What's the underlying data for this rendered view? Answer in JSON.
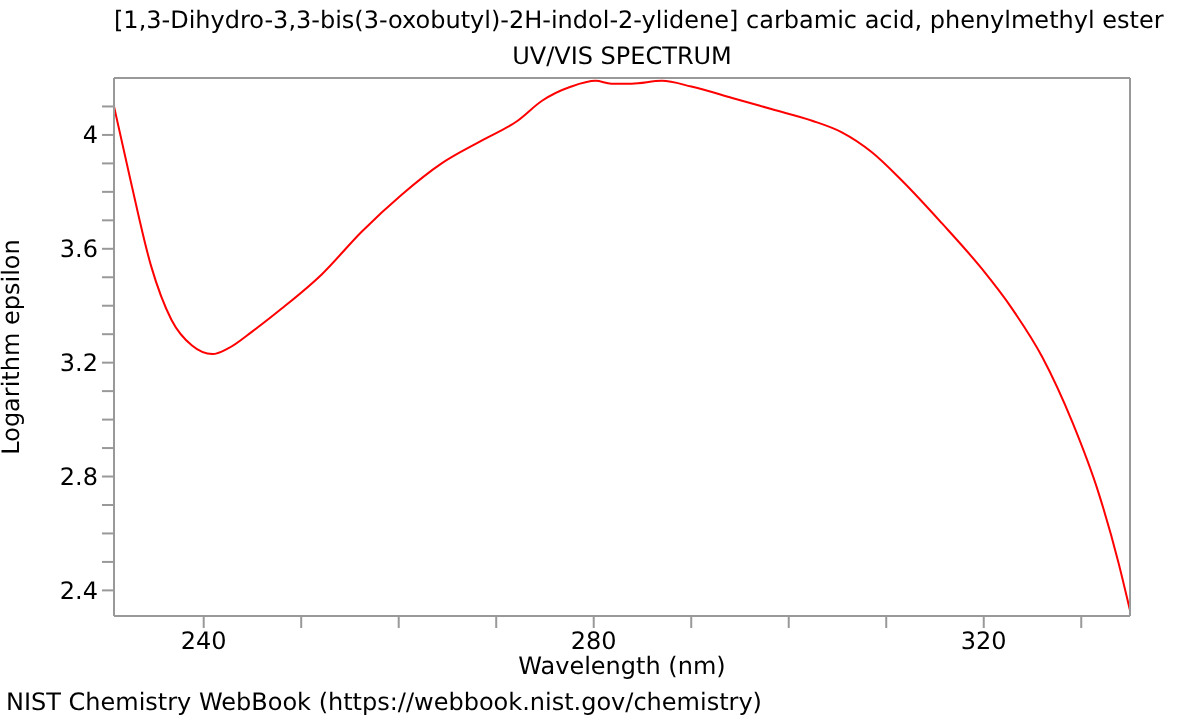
{
  "chart_data": {
    "type": "line",
    "title": "[1,3-Dihydro-3,3-bis(3-oxobutyl)-2H-indol-2-ylidene] carbamic acid, phenylmethyl ester",
    "subtitle": "UV/VIS SPECTRUM",
    "xlabel": "Wavelength (nm)",
    "ylabel": "Logarithm epsilon",
    "annotations": [
      "NIST Chemistry WebBook (https://webbook.nist.gov/chemistry)"
    ],
    "x": [
      230.8,
      232.5,
      234.6,
      236.7,
      238.8,
      240.9,
      242.5,
      245,
      248,
      252.1,
      256.2,
      260.3,
      264.4,
      268.5,
      272.2,
      274.7,
      277.7,
      280.2,
      281.8,
      283.9,
      287,
      290,
      294.2,
      298.3,
      302.4,
      305.4,
      308.5,
      311.6,
      315.7,
      319.8,
      322.9,
      326,
      329.1,
      331.8,
      333.8,
      335
    ],
    "series": [
      {
        "color": "#ff0000",
        "values": [
          4.1,
          3.84,
          3.54,
          3.35,
          3.26,
          3.23,
          3.25,
          3.31,
          3.39,
          3.51,
          3.66,
          3.79,
          3.9,
          3.98,
          4.05,
          4.12,
          4.17,
          4.19,
          4.18,
          4.18,
          4.19,
          4.17,
          4.13,
          4.09,
          4.05,
          4.01,
          3.94,
          3.84,
          3.69,
          3.53,
          3.39,
          3.22,
          2.99,
          2.74,
          2.5,
          2.33
        ]
      }
    ],
    "xlim": [
      230.8,
      335
    ],
    "ylim": [
      2.31,
      4.2
    ],
    "xticks": [
      240,
      {
        "value": 250,
        "label": null
      },
      {
        "value": 260,
        "label": null
      },
      {
        "value": 270,
        "label": null
      },
      280,
      {
        "value": 290,
        "label": null
      },
      {
        "value": 300,
        "label": null
      },
      {
        "value": 310,
        "label": null
      },
      320,
      {
        "value": 330,
        "label": null
      }
    ],
    "yticks": [
      2.4,
      {
        "value": 2.5,
        "label": null
      },
      {
        "value": 2.6,
        "label": null
      },
      {
        "value": 2.7,
        "label": null
      },
      2.8,
      {
        "value": 2.9,
        "label": null
      },
      {
        "value": 3.0,
        "label": null
      },
      {
        "value": 3.1,
        "label": null
      },
      3.2,
      {
        "value": 3.3,
        "label": null
      },
      {
        "value": 3.4,
        "label": null
      },
      {
        "value": 3.5,
        "label": null
      },
      3.6,
      {
        "value": 3.7,
        "label": null
      },
      {
        "value": 3.8,
        "label": null
      },
      {
        "value": 3.9,
        "label": null
      },
      4,
      {
        "value": 4.1,
        "label": null
      }
    ],
    "grid": false,
    "legend": false,
    "marker": "none",
    "line_style": "solid"
  }
}
